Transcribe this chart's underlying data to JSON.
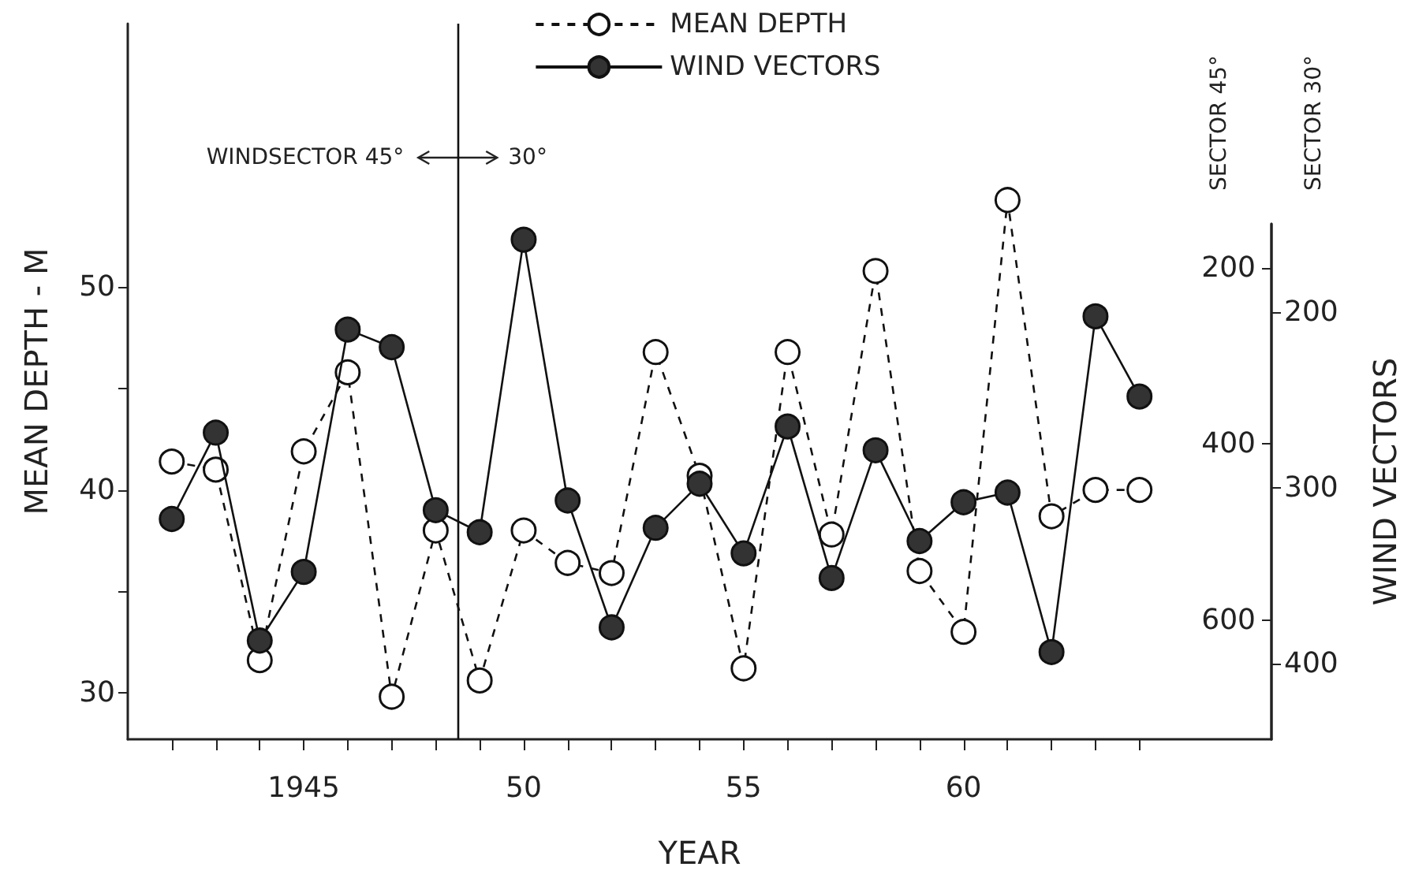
{
  "chart_data": {
    "type": "line",
    "ylabel": "MEAN DEPTH - M",
    "xlabel": "YEAR",
    "y2label": "WIND VECTORS",
    "annotations": [
      "WINDSECTOR 45°",
      "30°",
      "SECTOR 45°",
      "SECTOR 30°"
    ],
    "x": [
      1942,
      1943,
      1944,
      1945,
      1946,
      1947,
      1948,
      1949,
      1950,
      1951,
      1952,
      1953,
      1954,
      1955,
      1956,
      1957,
      1958,
      1959,
      1960,
      1961,
      1962,
      1963,
      1964
    ],
    "series": [
      {
        "name": "MEAN DEPTH",
        "color": "#ffffff",
        "line_style": "dashed",
        "values": [
          41.4,
          41.0,
          31.6,
          41.9,
          45.8,
          29.8,
          38.0,
          30.6,
          38.0,
          36.4,
          35.9,
          46.8,
          40.7,
          31.2,
          46.8,
          37.8,
          50.8,
          36.0,
          33.0,
          54.3,
          38.7,
          40.0,
          40.0
        ]
      },
      {
        "name": "WIND VECTORS",
        "color": "#333333",
        "line_style": "solid",
        "axis": "y2",
        "values": [
          485,
          387,
          623,
          545,
          270,
          290,
          475,
          500,
          168,
          464,
          608,
          495,
          445,
          524,
          380,
          552,
          407,
          510,
          466,
          455,
          636,
          255,
          346
        ]
      }
    ],
    "xlim": [
      1941,
      1967
    ],
    "xticks": [
      {
        "value": 1942,
        "label": null
      },
      {
        "value": 1943,
        "label": null
      },
      {
        "value": 1944,
        "label": null
      },
      {
        "value": 1945,
        "label": "1945"
      },
      {
        "value": 1946,
        "label": null
      },
      {
        "value": 1947,
        "label": null
      },
      {
        "value": 1948,
        "label": null
      },
      {
        "value": 1949,
        "label": null
      },
      {
        "value": 1950,
        "label": "50"
      },
      {
        "value": 1951,
        "label": null
      },
      {
        "value": 1952,
        "label": null
      },
      {
        "value": 1953,
        "label": null
      },
      {
        "value": 1954,
        "label": null
      },
      {
        "value": 1955,
        "label": "55"
      },
      {
        "value": 1956,
        "label": null
      },
      {
        "value": 1957,
        "label": null
      },
      {
        "value": 1958,
        "label": null
      },
      {
        "value": 1959,
        "label": null
      },
      {
        "value": 1960,
        "label": "60"
      },
      {
        "value": 1961,
        "label": null
      },
      {
        "value": 1962,
        "label": null
      },
      {
        "value": 1963,
        "label": null
      },
      {
        "value": 1964,
        "label": null
      }
    ],
    "ylim": [
      27.7,
      63
    ],
    "yticks": [
      30,
      {
        "value": 35,
        "label": null
      },
      40,
      {
        "value": 45,
        "label": null
      },
      50
    ],
    "y2lim": [
      735,
      150
    ],
    "y2ticks": [
      200,
      400,
      600
    ],
    "y3lim": [
      443,
      150
    ],
    "y3ticks": [
      200,
      300,
      400
    ],
    "ref_lines": [
      {
        "axis": "x",
        "value": 1948.5
      }
    ],
    "marker": "circle",
    "grid": false,
    "legend": "top"
  }
}
